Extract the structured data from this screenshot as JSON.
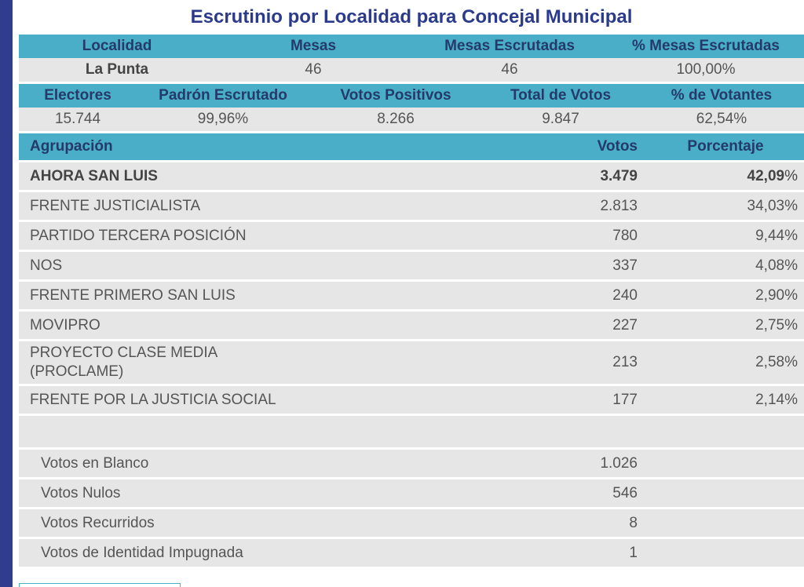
{
  "title": "Escrutinio por Localidad para Concejal Municipal",
  "summary1": {
    "headers": [
      "Localidad",
      "Mesas",
      "Mesas Escrutadas",
      "% Mesas Escrutadas"
    ],
    "values": [
      "La Punta",
      "46",
      "46",
      "100,00%"
    ]
  },
  "summary2": {
    "headers": [
      "Electores",
      "Padrón Escrutado",
      "Votos Positivos",
      "Total de Votos",
      "% de Votantes"
    ],
    "values": [
      "15.744",
      "99,96%",
      "8.266",
      "9.847",
      "62,54%"
    ]
  },
  "results": {
    "headers": {
      "agrupacion": "Agrupación",
      "votos": "Votos",
      "porcentaje": "Porcentaje"
    },
    "parties": [
      {
        "name": "AHORA SAN LUIS",
        "votes": "3.479",
        "pct": "42,09",
        "pct_suffix": "%"
      },
      {
        "name": "FRENTE JUSTICIALISTA",
        "votes": "2.813",
        "pct": "34,03",
        "pct_suffix": "%"
      },
      {
        "name": "PARTIDO TERCERA POSICIÓN",
        "votes": "780",
        "pct": "9,44",
        "pct_suffix": "%"
      },
      {
        "name": "NOS",
        "votes": "337",
        "pct": "4,08",
        "pct_suffix": "%"
      },
      {
        "name": "FRENTE PRIMERO SAN LUIS",
        "votes": "240",
        "pct": "2,90",
        "pct_suffix": "%"
      },
      {
        "name": "MOVIPRO",
        "votes": "227",
        "pct": "2,75",
        "pct_suffix": "%"
      },
      {
        "name_line1": "PROYECTO CLASE MEDIA",
        "name_line2": "(PROCLAME)",
        "votes": "213",
        "pct": "2,58",
        "pct_suffix": "%"
      },
      {
        "name": "FRENTE POR LA JUSTICIA SOCIAL",
        "votes": "177",
        "pct": "2,14",
        "pct_suffix": "%"
      }
    ],
    "other": [
      {
        "name": "Votos en Blanco",
        "votes": "1.026"
      },
      {
        "name": "Votos Nulos",
        "votes": "546"
      },
      {
        "name": "Votos Recurridos",
        "votes": "8"
      },
      {
        "name": "Votos de Identidad Impugnada",
        "votes": "1"
      }
    ]
  },
  "colors": {
    "header_bg": "#4aaec8",
    "header_text": "#243a6b",
    "title_text": "#2b3a8b",
    "row_bg": "#e6e6e6",
    "left_bar": "#2e3d8e"
  }
}
